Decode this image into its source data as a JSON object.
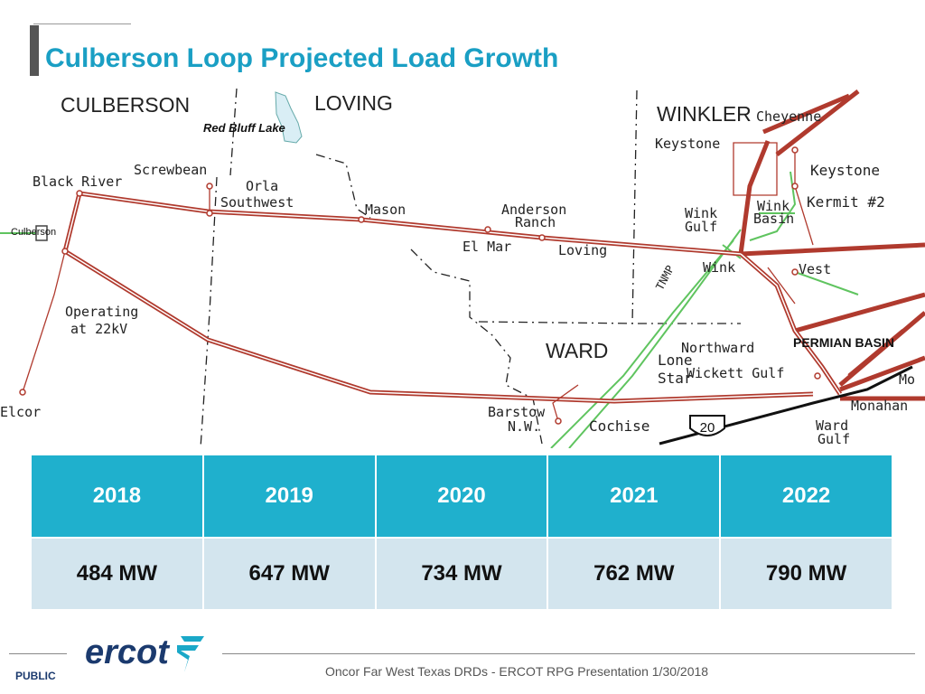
{
  "slide": {
    "title": "Culberson Loop Projected Load Growth"
  },
  "map": {
    "counties": {
      "culberson": "CULBERSON",
      "loving": "LOVING",
      "winkler": "WINKLER",
      "ward": "WARD"
    },
    "lake": "Red Bluff Lake",
    "labels": {
      "black_river": "Black River",
      "screwbean": "Screwbean",
      "orla_southwest_1": "Orla",
      "orla_southwest_2": "Southwest",
      "mason": "Mason",
      "anderson_ranch_1": "Anderson",
      "anderson_ranch_2": "Ranch",
      "el_mar": "El Mar",
      "loving": "Loving",
      "culberson": "Culberson",
      "operating_1": "Operating",
      "operating_2": "at 22kV",
      "elcor": "Elcor",
      "barstow_1": "Barstow",
      "barstow_2": "N.W.",
      "cochise": "Cochise",
      "interstate": "20",
      "cheyenne": "Cheyenne",
      "keystone_1": "Keystone",
      "keystone_2": "Keystone",
      "kermit": "Kermit #2",
      "wink_gulf_1": "Wink",
      "wink_gulf_2": "Gulf",
      "wink_basin_1": "Wink",
      "wink_basin_2": "Basin",
      "wink": "Wink",
      "vest": "Vest",
      "tnmp": "TNMP",
      "lone_star_1": "Lone",
      "lone_star_2": "Star",
      "northward": "Northward",
      "wickett_gulf": "Wickett Gulf",
      "permian_basin": "PERMIAN BASIN",
      "mo": "Mo",
      "monahans": "Monahan",
      "ward_gulf_1": "Ward",
      "ward_gulf_2": "Gulf"
    }
  },
  "table": {
    "years": [
      "2018",
      "2019",
      "2020",
      "2021",
      "2022"
    ],
    "loads": [
      "484 MW",
      "647 MW",
      "734 MW",
      "762 MW",
      "790 MW"
    ]
  },
  "footer": {
    "logo": "ercot",
    "classification": "PUBLIC",
    "caption": "Oncor Far West Texas DRDs - ERCOT RPG Presentation 1/30/2018"
  },
  "colors": {
    "title": "#1a9fc4",
    "table_header": "#1fb0cd",
    "table_row": "#d3e5ee",
    "line_red": "#b03a2e",
    "line_green": "#5fc45f",
    "logo": "#1b3a6e"
  }
}
